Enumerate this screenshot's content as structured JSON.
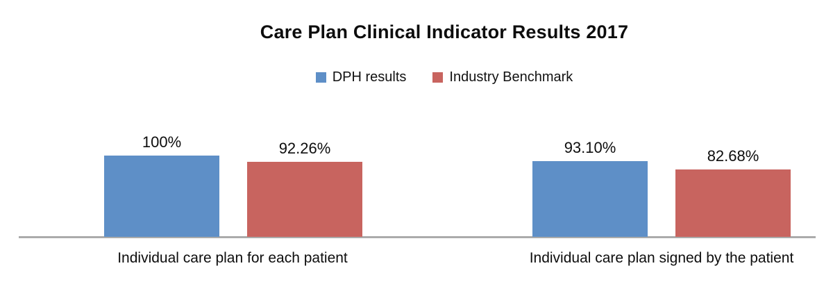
{
  "title": "Care Plan Clinical Indicator Results 2017",
  "legend": {
    "items": [
      {
        "label": "DPH results",
        "color": "#5E8FC7"
      },
      {
        "label": "Industry Benchmark",
        "color": "#C8645F"
      }
    ]
  },
  "chart_data": {
    "type": "bar",
    "title": "Care Plan Clinical Indicator Results 2017",
    "categories": [
      "Individual care plan for each patient",
      "Individual care plan signed by the patient"
    ],
    "series": [
      {
        "name": "DPH results",
        "color": "#5E8FC7",
        "values": [
          100,
          93.1
        ],
        "labels": [
          "100%",
          "93.10%"
        ]
      },
      {
        "name": "Industry Benchmark",
        "color": "#C8645F",
        "values": [
          92.26,
          82.68
        ],
        "labels": [
          "92.26%",
          "82.68%"
        ]
      }
    ],
    "xlabel": "",
    "ylabel": "",
    "ylim": [
      0,
      100
    ],
    "grid": false,
    "value_axis_visible": false,
    "legend_position": "top",
    "axis_line_color": "#ABABAB",
    "value_format": "percent"
  }
}
